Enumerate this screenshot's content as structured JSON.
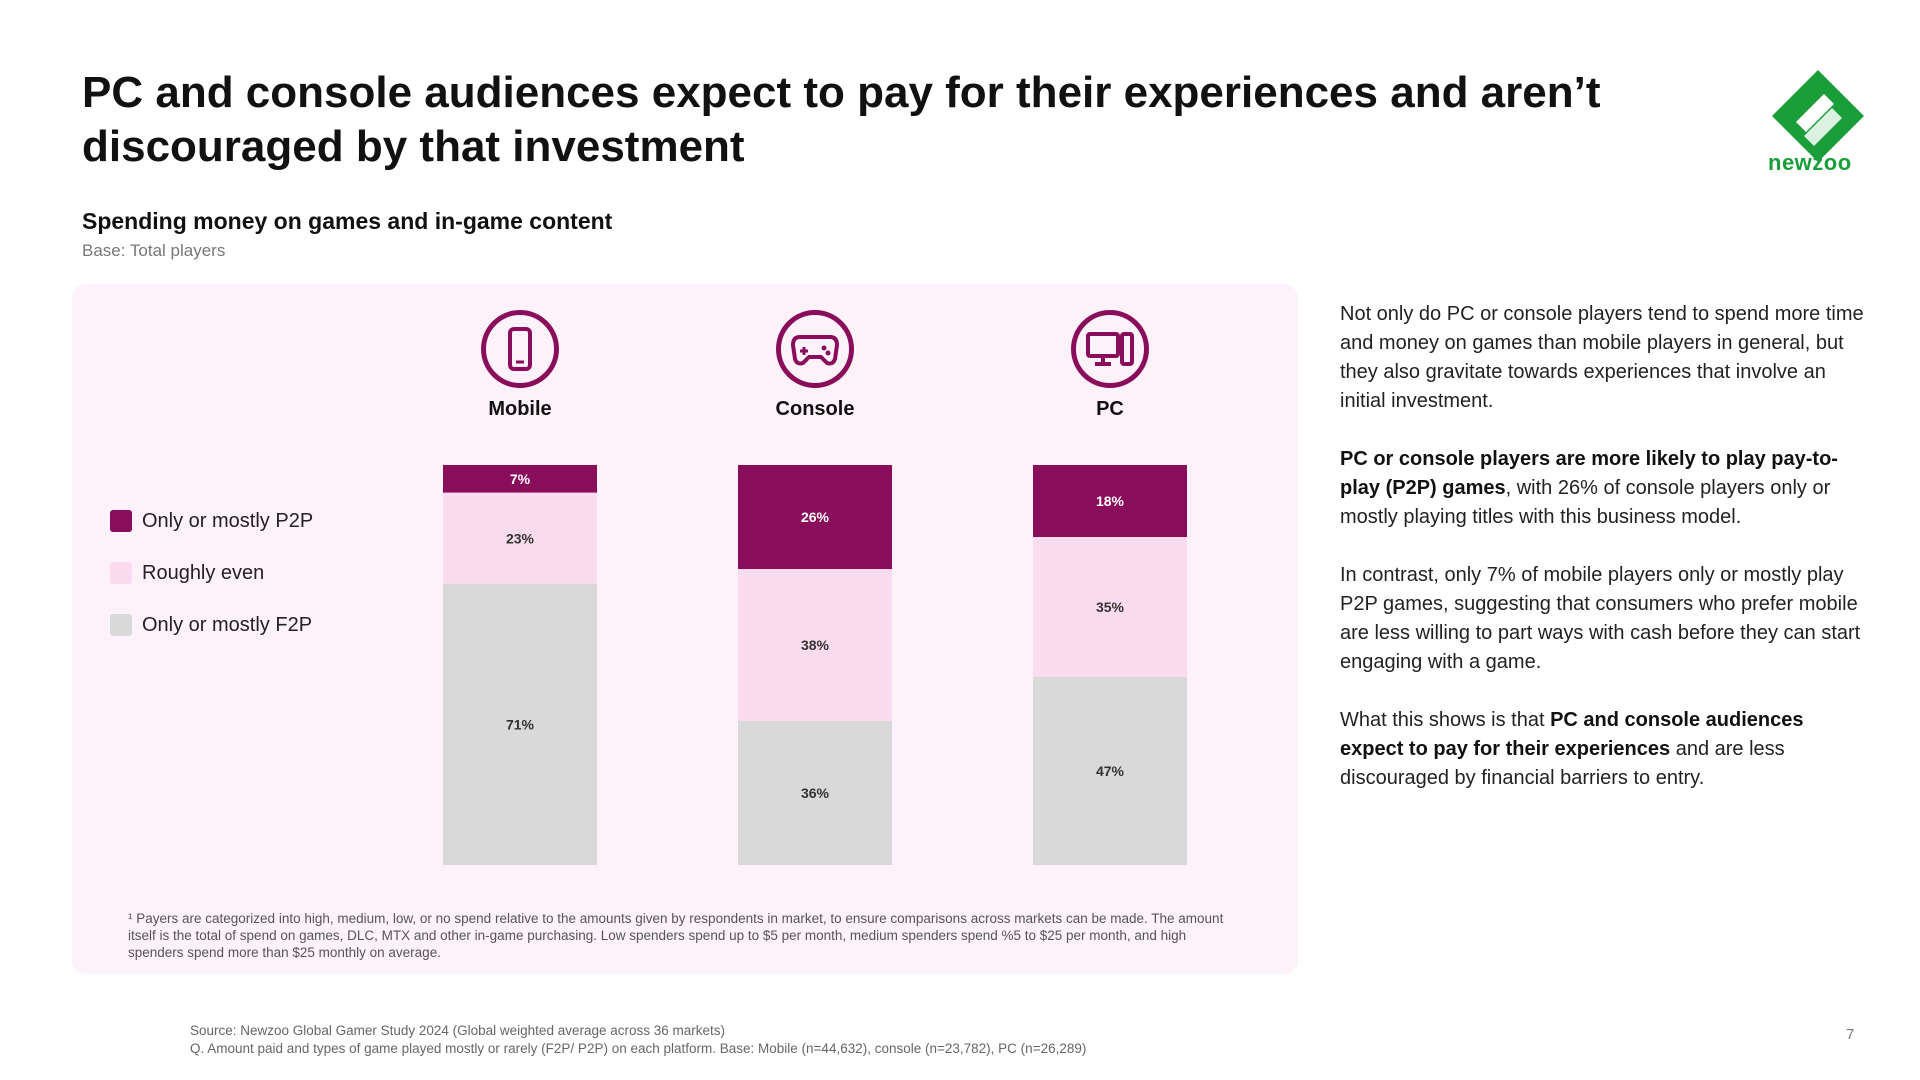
{
  "title": "PC and console audiences expect to pay for their experiences and aren’t discouraged by that investment",
  "logo_text": "newzoo",
  "subtitle": "Spending money on games and in-game content",
  "base": "Base: Total players",
  "colors": {
    "p2p": "#8a0d5c",
    "even": "#fbdcee",
    "f2p": "#d9d9d9",
    "panel": "#fdf2f9",
    "brand_green": "#1a9e3a"
  },
  "platforms": [
    {
      "label": "Mobile",
      "icon": "smartphone-icon"
    },
    {
      "label": "Console",
      "icon": "gamepad-icon"
    },
    {
      "label": "PC",
      "icon": "desktop-pc-icon"
    }
  ],
  "chart_data": {
    "type": "bar",
    "stacked": true,
    "categories": [
      "Mobile",
      "Console",
      "PC"
    ],
    "series": [
      {
        "name": "Only or mostly P2P",
        "values": [
          7,
          26,
          18
        ],
        "labels": [
          "7%",
          "26%",
          "18%"
        ],
        "color": "#8a0d5c"
      },
      {
        "name": "Roughly even",
        "values": [
          23,
          38,
          35
        ],
        "labels": [
          "23%",
          "38%",
          "35%"
        ],
        "color": "#fbdcee"
      },
      {
        "name": "Only or mostly F2P",
        "values": [
          71,
          36,
          47
        ],
        "labels": [
          "71%",
          "36%",
          "47%"
        ],
        "color": "#d9d9d9"
      }
    ],
    "ylim": [
      0,
      100
    ],
    "legend_position": "left"
  },
  "footnote": "¹ Payers are categorized into high, medium, low, or no spend relative to the amounts given by respondents in market, to ensure comparisons across markets can be made. The amount itself is the total of spend on games, DLC, MTX and other in-game purchasing. Low spenders spend up to $5 per month, medium spenders spend %5 to $25 per month, and high spenders spend more than $25 monthly on average.",
  "right_text": {
    "p1": "Not only do PC or console players tend to spend more time and money on games than mobile players in general, but they also gravitate towards experiences that involve an initial investment.",
    "p2_bold": "PC or console players are more likely to play pay-to-play (P2P) games",
    "p2_rest": ", with 26% of console players only or mostly playing titles with this business model.",
    "p3": "In contrast, only 7% of mobile players only or mostly play P2P games, suggesting that consumers who prefer mobile are less willing to part ways with cash before they can start engaging with a game.",
    "p4_start": "What this shows is that ",
    "p4_bold": "PC and console audiences expect to pay for their experiences",
    "p4_rest": " and are less discouraged by financial barriers to entry."
  },
  "source": {
    "line1": "Source: Newzoo Global Gamer Study 2024 (Global weighted average across 36 markets)",
    "line2": "Q. Amount paid and types of game played mostly or rarely (F2P/ P2P) on each platform. Base: Mobile (n=44,632), console (n=23,782), PC (n=26,289)"
  },
  "page_number": "7"
}
